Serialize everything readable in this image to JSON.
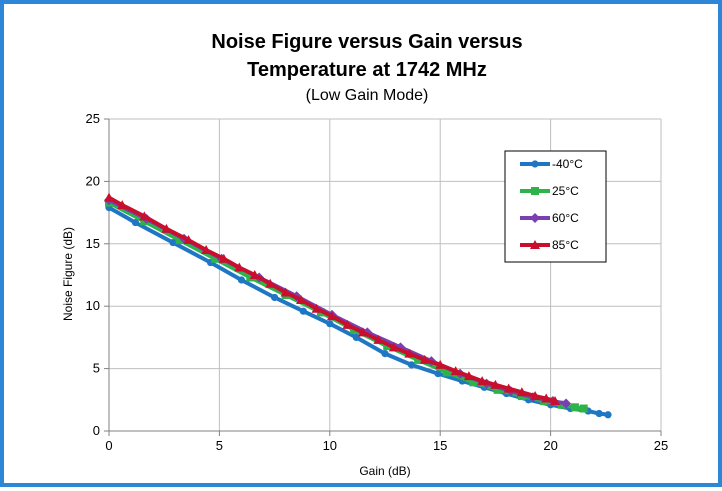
{
  "chart_data": {
    "type": "line",
    "title_lines": [
      "Noise Figure versus Gain versus",
      "Temperature at 1742 MHz"
    ],
    "subtitle": "(Low Gain Mode)",
    "xlabel": "Gain (dB)",
    "ylabel": "Noise Figure (dB)",
    "xlim": [
      0,
      25
    ],
    "ylim": [
      0,
      25
    ],
    "xticks": [
      0,
      5,
      10,
      15,
      20,
      25
    ],
    "yticks": [
      0,
      5,
      10,
      15,
      20,
      25
    ],
    "grid": true,
    "legend_position": "top-right",
    "series": [
      {
        "name": "-40°C",
        "color": "#1f77c4",
        "marker": "circle",
        "x": [
          0,
          1.2,
          2.9,
          4.6,
          6.0,
          7.5,
          8.8,
          10.0,
          11.2,
          12.5,
          13.7,
          14.9,
          16.0,
          17.0,
          18.0,
          19.0,
          20.0,
          20.9,
          21.7,
          22.2,
          22.6
        ],
        "y": [
          17.9,
          16.7,
          15.1,
          13.5,
          12.1,
          10.7,
          9.6,
          8.6,
          7.5,
          6.2,
          5.3,
          4.6,
          4.0,
          3.5,
          3.0,
          2.5,
          2.1,
          1.8,
          1.6,
          1.4,
          1.3
        ]
      },
      {
        "name": "25°C",
        "color": "#2db34a",
        "marker": "square",
        "x": [
          0,
          1.6,
          3.2,
          4.8,
          6.4,
          8.0,
          9.6,
          11.1,
          12.6,
          14.0,
          15.3,
          16.5,
          17.6,
          18.7,
          19.7,
          20.5,
          21.1,
          21.5
        ],
        "y": [
          18.3,
          16.8,
          15.3,
          13.8,
          12.3,
          10.9,
          9.5,
          8.1,
          6.8,
          5.7,
          4.7,
          3.9,
          3.3,
          2.8,
          2.4,
          2.1,
          1.9,
          1.8
        ]
      },
      {
        "name": "60°C",
        "color": "#7a3fb0",
        "marker": "diamond",
        "x": [
          0,
          1.7,
          3.4,
          5.1,
          6.8,
          8.5,
          10.1,
          11.7,
          13.2,
          14.6,
          15.9,
          17.1,
          18.2,
          19.2,
          20.1,
          20.7
        ],
        "y": [
          18.5,
          17.0,
          15.4,
          13.8,
          12.3,
          10.8,
          9.3,
          7.9,
          6.7,
          5.6,
          4.6,
          3.8,
          3.2,
          2.7,
          2.4,
          2.2
        ]
      },
      {
        "name": "85°C",
        "color": "#c8102e",
        "marker": "triangle",
        "x": [
          0,
          0.6,
          1.6,
          2.6,
          3.6,
          4.4,
          5.2,
          5.9,
          6.6,
          7.3,
          8.0,
          8.7,
          9.4,
          10.1,
          10.8,
          11.5,
          12.2,
          12.9,
          13.6,
          14.3,
          15.0,
          15.7,
          16.3,
          16.9,
          17.5,
          18.1,
          18.7,
          19.3,
          19.8,
          20.2
        ],
        "y": [
          18.7,
          18.1,
          17.2,
          16.2,
          15.3,
          14.5,
          13.8,
          13.1,
          12.5,
          11.8,
          11.1,
          10.5,
          9.8,
          9.2,
          8.5,
          7.9,
          7.3,
          6.7,
          6.2,
          5.7,
          5.3,
          4.8,
          4.4,
          4.0,
          3.7,
          3.4,
          3.1,
          2.8,
          2.6,
          2.4
        ]
      }
    ]
  }
}
